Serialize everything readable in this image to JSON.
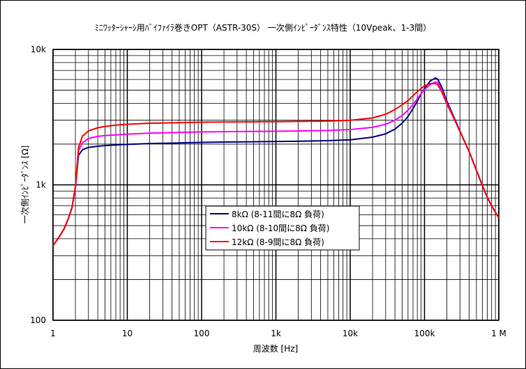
{
  "chart_data": {
    "type": "line",
    "title": "ﾐﾆﾜｯﾀｰｼｬｰｼ用ﾊﾞｲﾌｧｲﾗ巻きOPT（ASTR-30S） 一次側ｲﾝﾋﾟｰﾀﾞﾝｽ特性（10Vpeak、1-3間）",
    "xlabel": "周波数 [Hz]",
    "ylabel": "一次側ｲﾝﾋﾟｰﾀﾞﾝｽ [Ω]",
    "x_scale": "log",
    "y_scale": "log",
    "xlim": [
      1,
      1000000
    ],
    "ylim": [
      100,
      10000
    ],
    "x_ticks": [
      1,
      10,
      100,
      1000,
      10000,
      100000,
      1000000
    ],
    "x_tick_labels": [
      "1",
      "10",
      "100",
      "1k",
      "10k",
      "100k",
      "1 M"
    ],
    "y_ticks": [
      100,
      1000,
      10000
    ],
    "y_tick_labels": [
      "100",
      "1k",
      "10k"
    ],
    "grid": true,
    "legend_position": "center-left",
    "series": [
      {
        "name": "8kΩ (8-11間に8Ω 負荷)",
        "color": "#000080",
        "x": [
          1,
          1.2,
          1.4,
          1.6,
          1.8,
          2,
          2.2,
          2.5,
          3,
          4,
          5,
          7,
          10,
          20,
          50,
          100,
          200,
          500,
          1000,
          2000,
          5000,
          10000,
          20000,
          30000,
          40000,
          50000,
          60000,
          70000,
          80000,
          90000,
          100000,
          120000,
          140000,
          150000,
          170000,
          200000,
          250000,
          300000,
          400000,
          500000,
          600000,
          700000,
          800000,
          1000000
        ],
        "y": [
          355,
          410,
          470,
          560,
          680,
          950,
          1650,
          1820,
          1890,
          1930,
          1950,
          1970,
          1990,
          2020,
          2040,
          2060,
          2070,
          2080,
          2090,
          2100,
          2120,
          2150,
          2250,
          2380,
          2580,
          2850,
          3200,
          3650,
          4150,
          4700,
          5150,
          5850,
          6150,
          6050,
          5300,
          4150,
          3150,
          2500,
          1750,
          1280,
          990,
          810,
          700,
          570
        ]
      },
      {
        "name": "10kΩ (8-10間に8Ω 負荷)",
        "color": "#ff00ff",
        "x": [
          1,
          1.2,
          1.4,
          1.6,
          1.8,
          2,
          2.2,
          2.5,
          3,
          4,
          5,
          7,
          10,
          20,
          50,
          100,
          200,
          500,
          1000,
          2000,
          5000,
          10000,
          20000,
          30000,
          40000,
          50000,
          60000,
          70000,
          80000,
          90000,
          100000,
          120000,
          140000,
          150000,
          170000,
          200000,
          250000,
          300000,
          400000,
          500000,
          600000,
          700000,
          800000,
          1000000
        ],
        "y": [
          355,
          410,
          470,
          560,
          680,
          960,
          1780,
          2050,
          2200,
          2280,
          2310,
          2340,
          2370,
          2410,
          2440,
          2460,
          2470,
          2480,
          2490,
          2500,
          2520,
          2560,
          2660,
          2800,
          3000,
          3250,
          3560,
          3920,
          4320,
          4720,
          5050,
          5520,
          5750,
          5700,
          5050,
          4020,
          3100,
          2480,
          1750,
          1280,
          990,
          810,
          700,
          570
        ]
      },
      {
        "name": "12kΩ (8-9間に8Ω 負荷)",
        "color": "#ff0000",
        "x": [
          1,
          1.2,
          1.4,
          1.6,
          1.8,
          2,
          2.2,
          2.5,
          3,
          4,
          5,
          7,
          10,
          20,
          50,
          100,
          200,
          500,
          1000,
          2000,
          5000,
          10000,
          20000,
          30000,
          40000,
          50000,
          60000,
          70000,
          80000,
          90000,
          100000,
          120000,
          140000,
          150000,
          170000,
          200000,
          250000,
          300000,
          400000,
          500000,
          600000,
          700000,
          800000,
          1000000
        ],
        "y": [
          355,
          410,
          470,
          560,
          680,
          970,
          1880,
          2300,
          2500,
          2640,
          2700,
          2760,
          2800,
          2850,
          2880,
          2900,
          2910,
          2920,
          2930,
          2940,
          2960,
          3000,
          3120,
          3320,
          3600,
          3900,
          4200,
          4550,
          4880,
          5150,
          5380,
          5600,
          5600,
          5500,
          4900,
          3950,
          3080,
          2480,
          1750,
          1280,
          990,
          810,
          700,
          570
        ]
      }
    ]
  }
}
